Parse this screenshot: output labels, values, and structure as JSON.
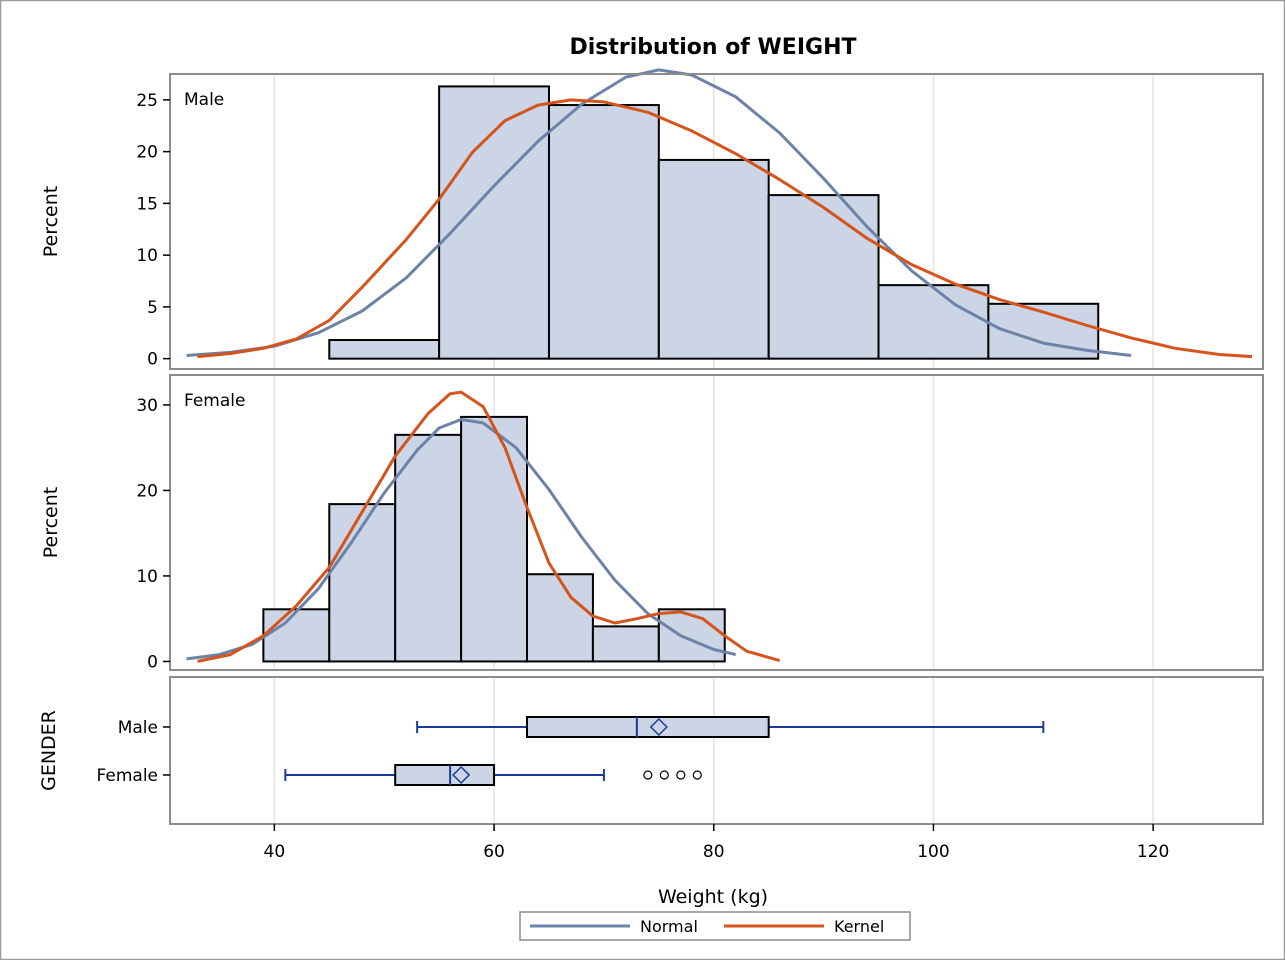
{
  "chart_data": {
    "type": "histogram",
    "title": "Distribution of WEIGHT",
    "xlabel": "Weight (kg)",
    "xlim": [
      30.5,
      130
    ],
    "xticks": [
      "40",
      "60",
      "80",
      "100",
      "120"
    ],
    "grid": "vertical",
    "legend": {
      "placement": "bottom-center",
      "items": [
        {
          "name": "Normal",
          "color": "#6c82a6"
        },
        {
          "name": "Kernel",
          "color": "#d4541c"
        }
      ]
    },
    "panels": [
      {
        "label": "Male",
        "ylabel": "Percent",
        "ylim": [
          -1,
          27.5
        ],
        "yticks": [
          "0",
          "5",
          "10",
          "15",
          "20",
          "25"
        ],
        "bins": [
          {
            "x0": 45,
            "x1": 55,
            "percent": 1.8
          },
          {
            "x0": 55,
            "x1": 65,
            "percent": 26.3
          },
          {
            "x0": 65,
            "x1": 75,
            "percent": 24.5
          },
          {
            "x0": 75,
            "x1": 85,
            "percent": 19.2
          },
          {
            "x0": 85,
            "x1": 95,
            "percent": 15.8
          },
          {
            "x0": 95,
            "x1": 105,
            "percent": 7.1
          },
          {
            "x0": 105,
            "x1": 115,
            "percent": 5.3
          }
        ],
        "normal_curve": [
          [
            32,
            0.3
          ],
          [
            36,
            0.6
          ],
          [
            40,
            1.2
          ],
          [
            44,
            2.5
          ],
          [
            48,
            4.6
          ],
          [
            52,
            7.8
          ],
          [
            56,
            12.1
          ],
          [
            60,
            16.7
          ],
          [
            64,
            21.0
          ],
          [
            68,
            24.6
          ],
          [
            72,
            27.2
          ],
          [
            75,
            27.9
          ],
          [
            78,
            27.4
          ],
          [
            82,
            25.3
          ],
          [
            86,
            21.8
          ],
          [
            90,
            17.4
          ],
          [
            94,
            12.7
          ],
          [
            98,
            8.5
          ],
          [
            102,
            5.2
          ],
          [
            106,
            2.9
          ],
          [
            110,
            1.5
          ],
          [
            114,
            0.8
          ],
          [
            118,
            0.3
          ]
        ],
        "kernel_curve": [
          [
            33,
            0.2
          ],
          [
            36,
            0.5
          ],
          [
            39,
            1.0
          ],
          [
            42,
            1.9
          ],
          [
            45,
            3.7
          ],
          [
            48,
            6.9
          ],
          [
            52,
            11.5
          ],
          [
            55,
            15.4
          ],
          [
            58,
            19.9
          ],
          [
            61,
            23.0
          ],
          [
            64,
            24.5
          ],
          [
            67,
            25.0
          ],
          [
            70,
            24.8
          ],
          [
            74,
            23.8
          ],
          [
            78,
            22.0
          ],
          [
            82,
            19.8
          ],
          [
            86,
            17.3
          ],
          [
            90,
            14.6
          ],
          [
            94,
            11.6
          ],
          [
            98,
            9.1
          ],
          [
            102,
            7.2
          ],
          [
            106,
            5.7
          ],
          [
            110,
            4.5
          ],
          [
            114,
            3.2
          ],
          [
            118,
            2.0
          ],
          [
            122,
            1.0
          ],
          [
            126,
            0.4
          ],
          [
            129,
            0.2
          ]
        ]
      },
      {
        "label": "Female",
        "ylabel": "Percent",
        "ylim": [
          -1,
          33.5
        ],
        "yticks": [
          "0",
          "10",
          "20",
          "30"
        ],
        "bins": [
          {
            "x0": 39,
            "x1": 45,
            "percent": 6.1
          },
          {
            "x0": 45,
            "x1": 51,
            "percent": 18.4
          },
          {
            "x0": 51,
            "x1": 57,
            "percent": 26.5
          },
          {
            "x0": 57,
            "x1": 63,
            "percent": 28.6
          },
          {
            "x0": 63,
            "x1": 69,
            "percent": 10.2
          },
          {
            "x0": 69,
            "x1": 75,
            "percent": 4.1
          },
          {
            "x0": 75,
            "x1": 81,
            "percent": 6.1
          }
        ],
        "normal_curve": [
          [
            32,
            0.3
          ],
          [
            35,
            0.8
          ],
          [
            38,
            2.0
          ],
          [
            41,
            4.5
          ],
          [
            44,
            8.5
          ],
          [
            47,
            13.9
          ],
          [
            50,
            19.7
          ],
          [
            53,
            24.7
          ],
          [
            55,
            27.3
          ],
          [
            57,
            28.3
          ],
          [
            59,
            27.9
          ],
          [
            62,
            25.0
          ],
          [
            65,
            20.1
          ],
          [
            68,
            14.5
          ],
          [
            71,
            9.5
          ],
          [
            74,
            5.6
          ],
          [
            77,
            3.0
          ],
          [
            80,
            1.4
          ],
          [
            82,
            0.8
          ]
        ],
        "kernel_curve": [
          [
            33,
            0.0
          ],
          [
            36,
            0.8
          ],
          [
            39,
            3.0
          ],
          [
            42,
            6.5
          ],
          [
            45,
            11.0
          ],
          [
            48,
            17.5
          ],
          [
            51,
            24.0
          ],
          [
            54,
            29.0
          ],
          [
            56,
            31.3
          ],
          [
            57,
            31.5
          ],
          [
            59,
            29.8
          ],
          [
            61,
            25.0
          ],
          [
            63,
            18.0
          ],
          [
            65,
            11.5
          ],
          [
            67,
            7.5
          ],
          [
            69,
            5.3
          ],
          [
            71,
            4.5
          ],
          [
            73,
            5.0
          ],
          [
            75,
            5.6
          ],
          [
            77,
            5.8
          ],
          [
            79,
            5.0
          ],
          [
            81,
            3.0
          ],
          [
            83,
            1.2
          ],
          [
            86,
            0.1
          ]
        ]
      }
    ],
    "boxplot": {
      "ylabel": "GENDER",
      "groups": [
        {
          "name": "Male",
          "whisker_low": 53,
          "q1": 63,
          "median": 73,
          "mean": 75,
          "q3": 85,
          "whisker_high": 110,
          "outliers": []
        },
        {
          "name": "Female",
          "whisker_low": 41,
          "q1": 51,
          "median": 56,
          "mean": 57,
          "q3": 60,
          "whisker_high": 70,
          "outliers": [
            74,
            75.5,
            77,
            78.5
          ]
        }
      ]
    }
  }
}
